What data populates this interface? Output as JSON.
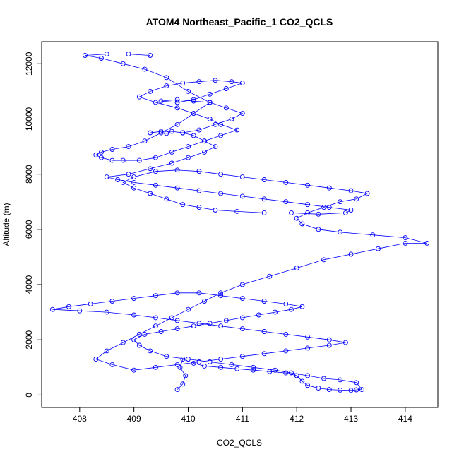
{
  "chart_data": {
    "type": "scatter",
    "title": "ATOM4 Northeast_Pacific_1 CO2_QCLS",
    "xlabel": "CO2_QCLS",
    "ylabel": "Altitude (m)",
    "xlim": [
      407.3,
      414.6
    ],
    "ylim": [
      -450,
      12800
    ],
    "x_ticks": [
      408,
      409,
      410,
      411,
      412,
      413,
      414
    ],
    "y_ticks": [
      0,
      2000,
      4000,
      6000,
      8000,
      10000,
      12000
    ],
    "grid": false,
    "legend": "none",
    "colors": {
      "series": "#0000ff",
      "axis": "#000000"
    },
    "series": [
      {
        "marker": "open-circle",
        "line": true,
        "x": [
          409.8,
          409.9,
          409.95,
          409.85,
          409.9,
          410.1,
          410.3,
          410.6,
          410.9,
          411.2,
          411.5,
          411.8,
          412.0,
          412.1,
          412.2,
          412.4,
          412.6,
          412.8,
          413.0,
          413.1,
          413.2,
          413.1,
          412.8,
          412.5,
          412.2,
          411.9,
          411.6,
          411.2,
          410.8,
          410.4,
          410.0,
          409.6,
          409.3,
          409.1,
          409.0,
          409.2,
          409.5,
          409.8,
          410.1,
          410.4,
          410.7,
          411.0,
          411.3,
          411.6,
          411.9,
          412.1,
          411.8,
          411.4,
          411.0,
          410.6,
          410.2,
          409.8,
          409.4,
          409.0,
          408.6,
          408.2,
          407.8,
          407.5,
          408.0,
          408.5,
          409.0,
          409.4,
          409.8,
          410.2,
          410.6,
          411.0,
          411.4,
          411.8,
          412.2,
          412.6,
          412.9,
          412.6,
          412.2,
          411.8,
          411.4,
          411.0,
          410.6,
          410.2,
          409.8,
          409.4,
          409.0,
          408.6,
          408.3,
          408.5,
          408.8,
          409.1,
          409.4,
          409.7,
          410.0,
          410.3,
          410.6,
          411.0,
          411.5,
          412.0,
          412.5,
          413.0,
          413.5,
          414.0,
          414.4,
          414.0,
          413.4,
          412.8,
          412.4,
          412.1,
          412.0,
          412.2,
          412.5,
          412.8,
          413.1,
          413.3,
          413.0,
          412.6,
          412.2,
          411.8,
          411.4,
          411.0,
          410.6,
          410.2,
          409.8,
          409.4,
          409.0,
          408.8,
          409.0,
          409.3,
          409.6,
          409.9,
          410.2,
          410.5,
          410.9,
          411.4,
          411.9,
          412.4,
          412.9,
          413.0,
          412.6,
          412.2,
          411.8,
          411.4,
          411.0,
          410.6,
          410.2,
          409.8,
          409.4,
          409.0,
          408.7,
          408.5,
          408.9,
          409.3,
          409.7,
          410.0,
          410.3,
          410.5,
          410.3,
          410.1,
          409.9,
          409.7,
          409.5,
          409.3,
          409.6,
          409.9,
          410.2,
          410.5,
          410.8,
          411.0,
          410.7,
          410.4,
          410.1,
          409.8,
          409.5,
          409.8,
          410.1,
          410.4,
          410.7,
          411.0,
          410.8,
          410.5,
          410.2,
          409.9,
          409.6,
          409.3,
          409.1,
          409.4,
          409.8,
          410.1,
          410.4,
          410.6,
          410.9,
          410.6,
          410.3,
          410.0,
          409.7,
          409.4,
          409.1,
          408.8,
          408.6,
          408.4,
          408.3,
          408.4,
          408.6,
          408.9,
          409.2,
          409.5,
          409.8,
          410.1,
          410.4,
          410.0,
          409.6,
          409.2,
          408.8,
          408.4,
          408.1,
          408.5,
          408.9,
          409.3
        ],
        "y": [
          200,
          400,
          700,
          1000,
          1300,
          1150,
          1050,
          1000,
          950,
          900,
          850,
          800,
          700,
          500,
          350,
          250,
          200,
          180,
          170,
          190,
          200,
          450,
          550,
          600,
          700,
          800,
          900,
          1000,
          1100,
          1200,
          1300,
          1400,
          1600,
          1800,
          2000,
          2200,
          2300,
          2400,
          2500,
          2600,
          2700,
          2800,
          2900,
          3000,
          3100,
          3200,
          3300,
          3400,
          3500,
          3600,
          3700,
          3700,
          3600,
          3500,
          3400,
          3300,
          3200,
          3100,
          3050,
          3000,
          2900,
          2800,
          2700,
          2600,
          2500,
          2400,
          2300,
          2200,
          2100,
          2000,
          1900,
          1800,
          1700,
          1600,
          1500,
          1400,
          1300,
          1200,
          1100,
          1000,
          900,
          1100,
          1300,
          1600,
          1900,
          2200,
          2500,
          2800,
          3100,
          3400,
          3700,
          4000,
          4300,
          4600,
          4900,
          5100,
          5300,
          5500,
          5500,
          5700,
          5800,
          5900,
          6000,
          6200,
          6400,
          6600,
          6800,
          7000,
          7100,
          7300,
          7400,
          7500,
          7600,
          7700,
          7800,
          7900,
          8000,
          8100,
          8150,
          8100,
          7900,
          7700,
          7500,
          7300,
          7100,
          6900,
          6800,
          6700,
          6650,
          6600,
          6600,
          6550,
          6600,
          6700,
          6800,
          6900,
          7000,
          7100,
          7200,
          7300,
          7400,
          7500,
          7600,
          7700,
          7800,
          7900,
          8000,
          8200,
          8400,
          8600,
          8800,
          9000,
          9200,
          9400,
          9500,
          9550,
          9550,
          9500,
          9480,
          9500,
          9600,
          9800,
          10000,
          10200,
          10400,
          10600,
          10650,
          10700,
          10650,
          10600,
          10700,
          10900,
          11100,
          11300,
          11350,
          11400,
          11350,
          11300,
          11200,
          11000,
          10800,
          10600,
          10400,
          10200,
          10000,
          9800,
          9600,
          9400,
          9200,
          9000,
          8800,
          8600,
          8500,
          8500,
          8500,
          8600,
          8700,
          8800,
          8900,
          9000,
          9200,
          9500,
          9800,
          10200,
          10600,
          11000,
          11500,
          11800,
          12000,
          12200,
          12300,
          12350,
          12350,
          12300
        ]
      }
    ]
  }
}
